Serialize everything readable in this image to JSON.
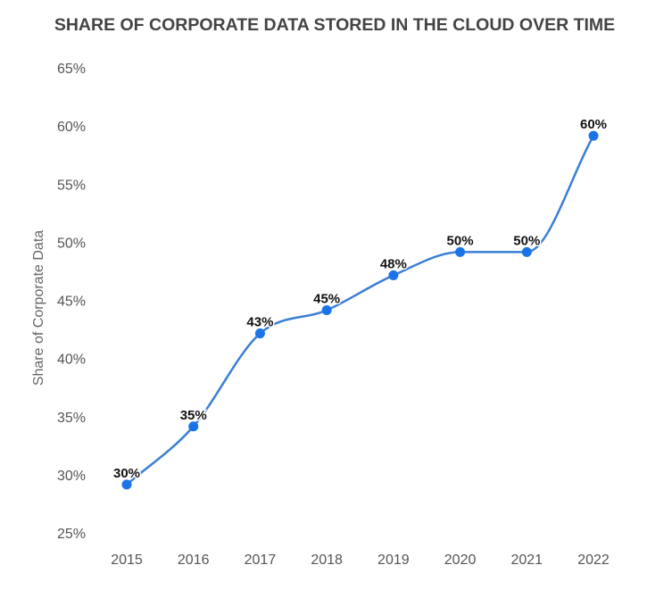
{
  "chart_data": {
    "type": "line",
    "title": "SHARE OF CORPORATE DATA STORED IN THE CLOUD OVER TIME",
    "xlabel": "",
    "ylabel": "Share of Corporate Data",
    "categories": [
      "2015",
      "2016",
      "2017",
      "2018",
      "2019",
      "2020",
      "2021",
      "2022"
    ],
    "values": [
      30,
      35,
      43,
      45,
      48,
      50,
      50,
      60
    ],
    "data_labels": [
      "30%",
      "35%",
      "43%",
      "45%",
      "48%",
      "50%",
      "50%",
      "60%"
    ],
    "yticks": [
      "25%",
      "30%",
      "35%",
      "40%",
      "45%",
      "50%",
      "55%",
      "60%",
      "65%"
    ],
    "ylim": [
      25,
      65
    ],
    "grid": false,
    "legend": "none",
    "line_color": "#3a7fd5",
    "marker_color": "#1a73e8"
  }
}
